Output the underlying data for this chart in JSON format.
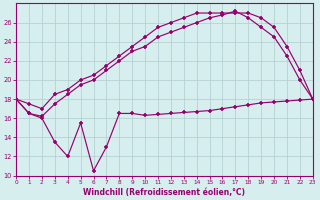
{
  "bg_color": "#d6eeed",
  "grid_color": "#b0cccc",
  "line_color": "#99006e",
  "xlim": [
    0,
    23
  ],
  "ylim": [
    10,
    28
  ],
  "xticks": [
    0,
    1,
    2,
    3,
    4,
    5,
    6,
    7,
    8,
    9,
    10,
    11,
    12,
    13,
    14,
    15,
    16,
    17,
    18,
    19,
    20,
    21,
    22,
    23
  ],
  "yticks": [
    10,
    12,
    14,
    16,
    18,
    20,
    22,
    24,
    26
  ],
  "xlabel": "Windchill (Refroidissement éolien,°C)",
  "s1_x": [
    0,
    1,
    2,
    3,
    4,
    5,
    6,
    7,
    8,
    9,
    10,
    11,
    12,
    13,
    14,
    15,
    16,
    17,
    18,
    19,
    20,
    21,
    22,
    23
  ],
  "s1_y": [
    18,
    17.5,
    17,
    18.5,
    19,
    20,
    20.5,
    21.5,
    22.5,
    23.5,
    24.5,
    25.5,
    26,
    26.5,
    27,
    27,
    27,
    27,
    27,
    26.5,
    25.5,
    23.5,
    21,
    18
  ],
  "s2_x": [
    0,
    1,
    2,
    3,
    4,
    5,
    6,
    7,
    8,
    9,
    10,
    11,
    12,
    13,
    14,
    15,
    16,
    17,
    18,
    19,
    20,
    21,
    22,
    23
  ],
  "s2_y": [
    18,
    16.5,
    16.2,
    17.5,
    18.5,
    19.5,
    20,
    21,
    22,
    23,
    23.5,
    24.5,
    25,
    25.5,
    26,
    26.5,
    26.8,
    27.2,
    26.5,
    25.5,
    24.5,
    22.5,
    20,
    18
  ],
  "s3_x": [
    0,
    1,
    2,
    3,
    4,
    5,
    6,
    7,
    8,
    9,
    10,
    11,
    12,
    13,
    14,
    15,
    16,
    17,
    18,
    19,
    20,
    21,
    22,
    23
  ],
  "s3_y": [
    18,
    16.5,
    16,
    13.5,
    12,
    15.5,
    10.5,
    13,
    16.5,
    16.5,
    16.3,
    16.4,
    16.5,
    16.6,
    16.7,
    16.8,
    17.0,
    17.2,
    17.4,
    17.6,
    17.7,
    17.8,
    17.9,
    18
  ]
}
